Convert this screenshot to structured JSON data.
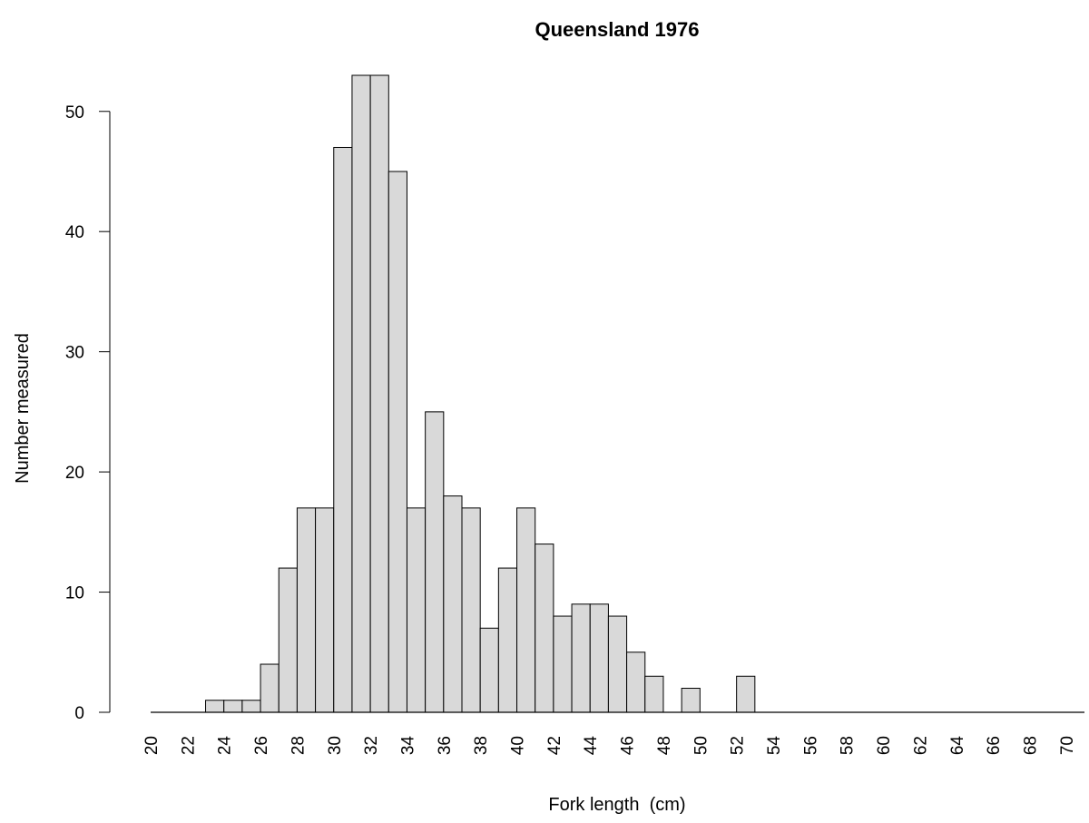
{
  "chart_data": {
    "type": "bar",
    "title": "Queensland 1976",
    "xlabel": "Fork length  (cm)",
    "ylabel": "Number measured",
    "x_start": 20,
    "bin_width": 1,
    "xlim": [
      20,
      71
    ],
    "ylim": [
      0,
      53
    ],
    "x_ticks": [
      20,
      22,
      24,
      26,
      28,
      30,
      32,
      34,
      36,
      38,
      40,
      42,
      44,
      46,
      48,
      50,
      52,
      54,
      56,
      58,
      60,
      62,
      64,
      66,
      68,
      70
    ],
    "y_ticks": [
      0,
      10,
      20,
      30,
      40,
      50
    ],
    "values": [
      0,
      0,
      0,
      1,
      1,
      1,
      4,
      12,
      17,
      17,
      47,
      53,
      53,
      45,
      17,
      25,
      18,
      17,
      7,
      12,
      17,
      14,
      8,
      9,
      9,
      8,
      5,
      3,
      0,
      2,
      0,
      0,
      3,
      0,
      0,
      0,
      0,
      0,
      0,
      0,
      0,
      0,
      0,
      0,
      0,
      0,
      0,
      0,
      0,
      0,
      0
    ],
    "bar_color": "#d9d9d9",
    "edge_color": "#000000",
    "grid": false,
    "legend": "none"
  }
}
